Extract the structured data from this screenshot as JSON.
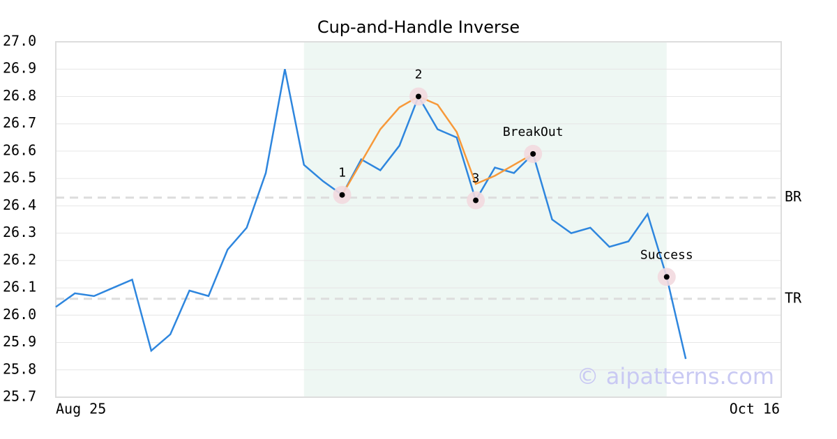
{
  "chart_data": {
    "type": "line",
    "title": "Cup-and-Handle Inverse",
    "categories": [
      "Aug 25",
      null,
      null,
      null,
      null,
      null,
      null,
      null,
      null,
      null,
      null,
      null,
      null,
      null,
      null,
      null,
      null,
      null,
      null,
      null,
      null,
      null,
      null,
      null,
      null,
      null,
      null,
      null,
      null,
      null,
      null,
      null,
      null,
      null,
      null,
      null,
      null,
      null,
      "Oct 16"
    ],
    "series": [
      {
        "color": "#2e86de",
        "values": [
          26.03,
          26.08,
          26.07,
          26.1,
          26.13,
          25.87,
          25.93,
          26.09,
          26.07,
          26.24,
          26.32,
          26.52,
          26.9,
          26.55,
          26.49,
          26.44,
          26.57,
          26.53,
          26.62,
          26.8,
          26.68,
          26.65,
          26.42,
          26.54,
          26.52,
          26.59,
          26.35,
          26.3,
          26.32,
          26.25,
          26.27,
          26.37,
          26.14,
          25.84,
          null,
          null,
          null,
          null,
          null
        ]
      },
      {
        "color": "#f7993a",
        "values": [
          null,
          null,
          null,
          null,
          null,
          null,
          null,
          null,
          null,
          null,
          null,
          null,
          null,
          null,
          null,
          26.44,
          26.56,
          26.68,
          26.76,
          26.8,
          26.77,
          26.67,
          26.48,
          26.51,
          26.55,
          26.59,
          null,
          null,
          null,
          null,
          null,
          null,
          null,
          null,
          null,
          null,
          null,
          null,
          null
        ]
      }
    ],
    "points": [
      {
        "label": "1",
        "x": 15,
        "value": 26.44
      },
      {
        "label": "2",
        "x": 19,
        "value": 26.8
      },
      {
        "label": "3",
        "x": 22,
        "value": 26.42
      },
      {
        "label": "BreakOut",
        "x": 25,
        "value": 26.59
      },
      {
        "label": "Success",
        "x": 32,
        "value": 26.14
      }
    ],
    "levels": [
      {
        "label": "BR",
        "value": 26.43
      },
      {
        "label": "TR",
        "value": 26.06
      }
    ],
    "shade": [
      13,
      32
    ],
    "watermark": "© aipatterns.com",
    "ylim": [
      25.7,
      27.0
    ],
    "yticks": [
      25.7,
      25.8,
      25.9,
      {
        "value": 26,
        "label": "26.0"
      },
      26.1,
      26.2,
      26.3,
      26.4,
      26.5,
      26.6,
      26.7,
      26.8,
      26.9,
      {
        "value": 27,
        "label": "27.0"
      }
    ],
    "grid": true
  }
}
